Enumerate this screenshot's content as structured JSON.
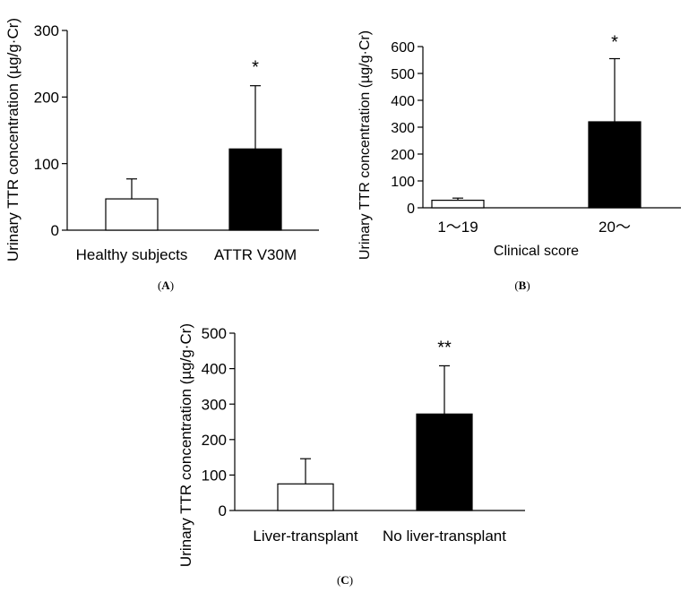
{
  "chart_data": [
    {
      "type": "bar",
      "panel_label": "(A)",
      "panel_letter": "A",
      "categories": [
        "Healthy subjects",
        "ATTR V30M"
      ],
      "values": [
        47,
        122
      ],
      "error_upper": [
        77,
        217
      ],
      "fills": [
        "#ffffff",
        "#000000"
      ],
      "significance": [
        "",
        "*"
      ],
      "ylabel": "Urinary TTR concentration (µg/g·Cr)",
      "xlabel": "",
      "ylim": [
        0,
        300
      ],
      "yticks": [
        0,
        100,
        200,
        300
      ]
    },
    {
      "type": "bar",
      "panel_label": "(B)",
      "panel_letter": "B",
      "categories": [
        "1～19",
        "20～"
      ],
      "values": [
        28,
        320
      ],
      "error_upper": [
        36,
        555
      ],
      "fills": [
        "#ffffff",
        "#000000"
      ],
      "significance": [
        "",
        "*"
      ],
      "ylabel": "Urinary TTR concentration (µg/g·Cr)",
      "xlabel": "Clinical score",
      "ylim": [
        0,
        600
      ],
      "yticks": [
        0,
        100,
        200,
        300,
        400,
        500,
        600
      ]
    },
    {
      "type": "bar",
      "panel_label": "(C)",
      "panel_letter": "C",
      "categories": [
        "Liver-transplant",
        "No liver-transplant"
      ],
      "values": [
        75,
        272
      ],
      "error_upper": [
        146,
        408
      ],
      "fills": [
        "#ffffff",
        "#000000"
      ],
      "significance": [
        "",
        "**"
      ],
      "ylabel": "Urinary TTR concentration (µg/g·Cr)",
      "xlabel": "",
      "ylim": [
        0,
        500
      ],
      "yticks": [
        0,
        100,
        200,
        300,
        400,
        500
      ]
    }
  ]
}
